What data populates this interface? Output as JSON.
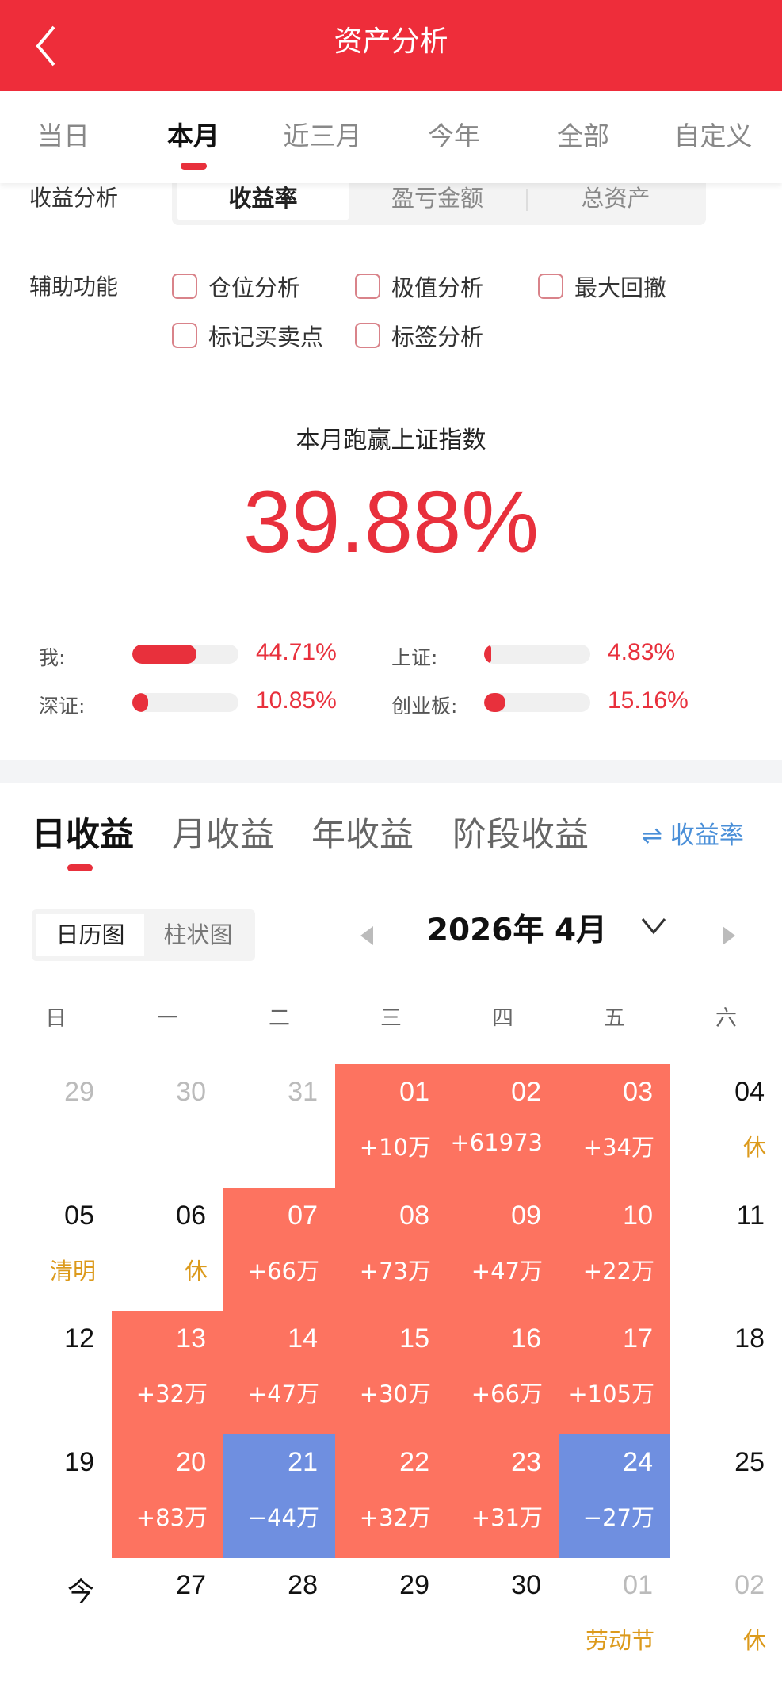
{
  "header": {
    "title": "资产分析",
    "back_icon": "chevron-left-icon"
  },
  "period_tabs": [
    {
      "label": "当日"
    },
    {
      "label": "本月",
      "active": true
    },
    {
      "label": "近三月"
    },
    {
      "label": "今年"
    },
    {
      "label": "全部"
    },
    {
      "label": "自定义"
    }
  ],
  "analysis": {
    "label": "收益分析",
    "options": [
      {
        "label": "收益率",
        "active": true
      },
      {
        "label": "盈亏金额"
      },
      {
        "label": "总资产"
      }
    ]
  },
  "aux": {
    "label": "辅助功能",
    "options": [
      {
        "label": "仓位分析",
        "checked": false
      },
      {
        "label": "极值分析",
        "checked": false
      },
      {
        "label": "最大回撤",
        "checked": false
      },
      {
        "label": "标记买卖点",
        "checked": false
      },
      {
        "label": "标签分析",
        "checked": false
      }
    ]
  },
  "summary": {
    "title": "本月跑赢上证指数",
    "value": "39.88%"
  },
  "comparison": [
    {
      "label": "我:",
      "value": "44.71%",
      "pct": 44.71
    },
    {
      "label": "上证:",
      "value": "4.83%",
      "pct": 4.83
    },
    {
      "label": "深证:",
      "value": "10.85%",
      "pct": 10.85
    },
    {
      "label": "创业板:",
      "value": "15.16%",
      "pct": 15.16
    }
  ],
  "profit_tabs": [
    {
      "label": "日收益",
      "active": true
    },
    {
      "label": "月收益"
    },
    {
      "label": "年收益"
    },
    {
      "label": "阶段收益"
    }
  ],
  "rate_switch": "⇌ 收益率",
  "view_toggle": [
    {
      "label": "日历图",
      "active": true
    },
    {
      "label": "柱状图"
    }
  ],
  "month": "2026年 4月",
  "weekdays": [
    "日",
    "一",
    "二",
    "三",
    "四",
    "五",
    "六"
  ],
  "colors": {
    "accent": "#ee2d3a",
    "profit": "#fd7360",
    "loss": "#6f8fe0",
    "holiday": "#dc9a1c",
    "link": "#4a8fd8"
  },
  "calendar": [
    [
      {
        "d": "29",
        "t": "other"
      },
      {
        "d": "30",
        "t": "other"
      },
      {
        "d": "31",
        "t": "other"
      },
      {
        "d": "01",
        "s": "+10万",
        "t": "up"
      },
      {
        "d": "02",
        "s": "+61973",
        "t": "up"
      },
      {
        "d": "03",
        "s": "+34万",
        "t": "up"
      },
      {
        "d": "04",
        "s": "休",
        "t": "hol"
      }
    ],
    [
      {
        "d": "05",
        "s": "清明",
        "t": "hol"
      },
      {
        "d": "06",
        "s": "休",
        "t": "hol"
      },
      {
        "d": "07",
        "s": "+66万",
        "t": "up"
      },
      {
        "d": "08",
        "s": "+73万",
        "t": "up"
      },
      {
        "d": "09",
        "s": "+47万",
        "t": "up"
      },
      {
        "d": "10",
        "s": "+22万",
        "t": "up"
      },
      {
        "d": "11",
        "t": ""
      }
    ],
    [
      {
        "d": "12",
        "t": ""
      },
      {
        "d": "13",
        "s": "+32万",
        "t": "up"
      },
      {
        "d": "14",
        "s": "+47万",
        "t": "up"
      },
      {
        "d": "15",
        "s": "+30万",
        "t": "up"
      },
      {
        "d": "16",
        "s": "+66万",
        "t": "up"
      },
      {
        "d": "17",
        "s": "+105万",
        "t": "up"
      },
      {
        "d": "18",
        "t": ""
      }
    ],
    [
      {
        "d": "19",
        "t": ""
      },
      {
        "d": "20",
        "s": "+83万",
        "t": "up"
      },
      {
        "d": "21",
        "s": "−44万",
        "t": "down"
      },
      {
        "d": "22",
        "s": "+32万",
        "t": "up"
      },
      {
        "d": "23",
        "s": "+31万",
        "t": "up"
      },
      {
        "d": "24",
        "s": "−27万",
        "t": "down"
      },
      {
        "d": "25",
        "t": ""
      }
    ],
    [
      {
        "d": "今",
        "t": ""
      },
      {
        "d": "27",
        "t": ""
      },
      {
        "d": "28",
        "t": ""
      },
      {
        "d": "29",
        "t": ""
      },
      {
        "d": "30",
        "t": ""
      },
      {
        "d": "01",
        "s": "劳动节",
        "t": "otherhol"
      },
      {
        "d": "02",
        "s": "休",
        "t": "otherhol"
      }
    ]
  ]
}
